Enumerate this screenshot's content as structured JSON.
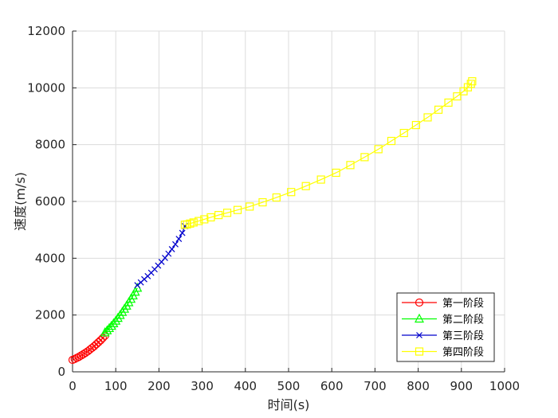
{
  "chart_data": {
    "type": "line",
    "title": "",
    "xlabel": "时间(s)",
    "ylabel": "速度(m/s)",
    "xlim": [
      0,
      1000
    ],
    "ylim": [
      0,
      12000
    ],
    "x_ticks": [
      "0",
      "100",
      "200",
      "300",
      "400",
      "500",
      "600",
      "700",
      "800",
      "900",
      "1000"
    ],
    "y_ticks": [
      "0",
      "2000",
      "4000",
      "6000",
      "8000",
      "10000",
      "12000"
    ],
    "grid": true,
    "legend_position": "bottom-right",
    "series": [
      {
        "name": "第一阶段",
        "color": "#ff0000",
        "marker": "circle",
        "x": [
          0,
          5,
          10,
          15,
          20,
          25,
          30,
          35,
          40,
          45,
          50,
          55,
          60,
          65,
          70,
          75
        ],
        "y": [
          420,
          450,
          490,
          530,
          575,
          620,
          670,
          720,
          780,
          840,
          900,
          970,
          1040,
          1110,
          1190,
          1270
        ]
      },
      {
        "name": "第二阶段",
        "color": "#00ff00",
        "marker": "triangle",
        "x": [
          75,
          80,
          85,
          90,
          95,
          100,
          105,
          110,
          115,
          120,
          125,
          130,
          135,
          140,
          145,
          150
        ],
        "y": [
          1380,
          1450,
          1530,
          1610,
          1700,
          1790,
          1890,
          1990,
          2100,
          2210,
          2320,
          2440,
          2560,
          2680,
          2810,
          2950
        ]
      },
      {
        "name": "第三阶段",
        "color": "#0000cc",
        "marker": "x",
        "x": [
          150,
          158,
          166,
          174,
          182,
          190,
          198,
          206,
          214,
          222,
          230,
          238,
          246,
          254,
          260
        ],
        "y": [
          3050,
          3150,
          3260,
          3370,
          3490,
          3610,
          3740,
          3870,
          4010,
          4160,
          4320,
          4490,
          4680,
          4890,
          5130
        ]
      },
      {
        "name": "第四阶段",
        "color": "#ffff00",
        "marker": "square",
        "x": [
          260,
          265,
          272,
          280,
          292,
          305,
          320,
          338,
          358,
          382,
          410,
          440,
          472,
          506,
          540,
          575,
          610,
          643,
          676,
          708,
          738,
          767,
          795,
          822,
          847,
          870,
          890,
          905,
          915,
          922,
          925
        ],
        "y": [
          5180,
          5190,
          5220,
          5260,
          5310,
          5370,
          5440,
          5520,
          5600,
          5700,
          5820,
          5970,
          6140,
          6330,
          6540,
          6770,
          7010,
          7280,
          7560,
          7840,
          8130,
          8410,
          8690,
          8960,
          9230,
          9480,
          9700,
          9880,
          10020,
          10140,
          10230
        ]
      }
    ]
  }
}
